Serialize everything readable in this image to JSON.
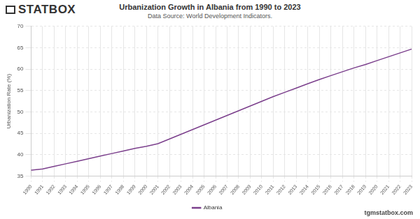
{
  "logo": "STATBOX",
  "footer": "tgmstatbox.com",
  "chart_data": {
    "type": "line",
    "title": "Urbanization Growth in Albania from 1990 to 2023",
    "subtitle": "Data Source: World Development Indicators.",
    "y_label": "Urbanization Rate (%)",
    "categories": [
      "1990",
      "1991",
      "1992",
      "1993",
      "1994",
      "1995",
      "1996",
      "1997",
      "1998",
      "1999",
      "2000",
      "2001",
      "2002",
      "2003",
      "2004",
      "2005",
      "2006",
      "2007",
      "2008",
      "2009",
      "2010",
      "2011",
      "2012",
      "2013",
      "2014",
      "2015",
      "2016",
      "2017",
      "2018",
      "2019",
      "2020",
      "2021",
      "2022",
      "2023"
    ],
    "series": [
      {
        "name": "Albania",
        "color": "#7b3f8c",
        "marker": "none",
        "line_style": "solid",
        "values": [
          36.4,
          36.7,
          37.3,
          37.9,
          38.5,
          39.1,
          39.7,
          40.3,
          40.9,
          41.5,
          42.0,
          42.6,
          43.7,
          44.8,
          45.9,
          47.0,
          48.1,
          49.2,
          50.3,
          51.4,
          52.5,
          53.6,
          54.6,
          55.6,
          56.6,
          57.6,
          58.5,
          59.4,
          60.3,
          61.1,
          62.0,
          62.9,
          63.8,
          64.7
        ]
      }
    ],
    "ylim": [
      35,
      70
    ],
    "yticks": [
      35,
      40,
      45,
      50,
      55,
      60,
      65,
      70
    ],
    "grid": true,
    "legend": "bottom"
  }
}
